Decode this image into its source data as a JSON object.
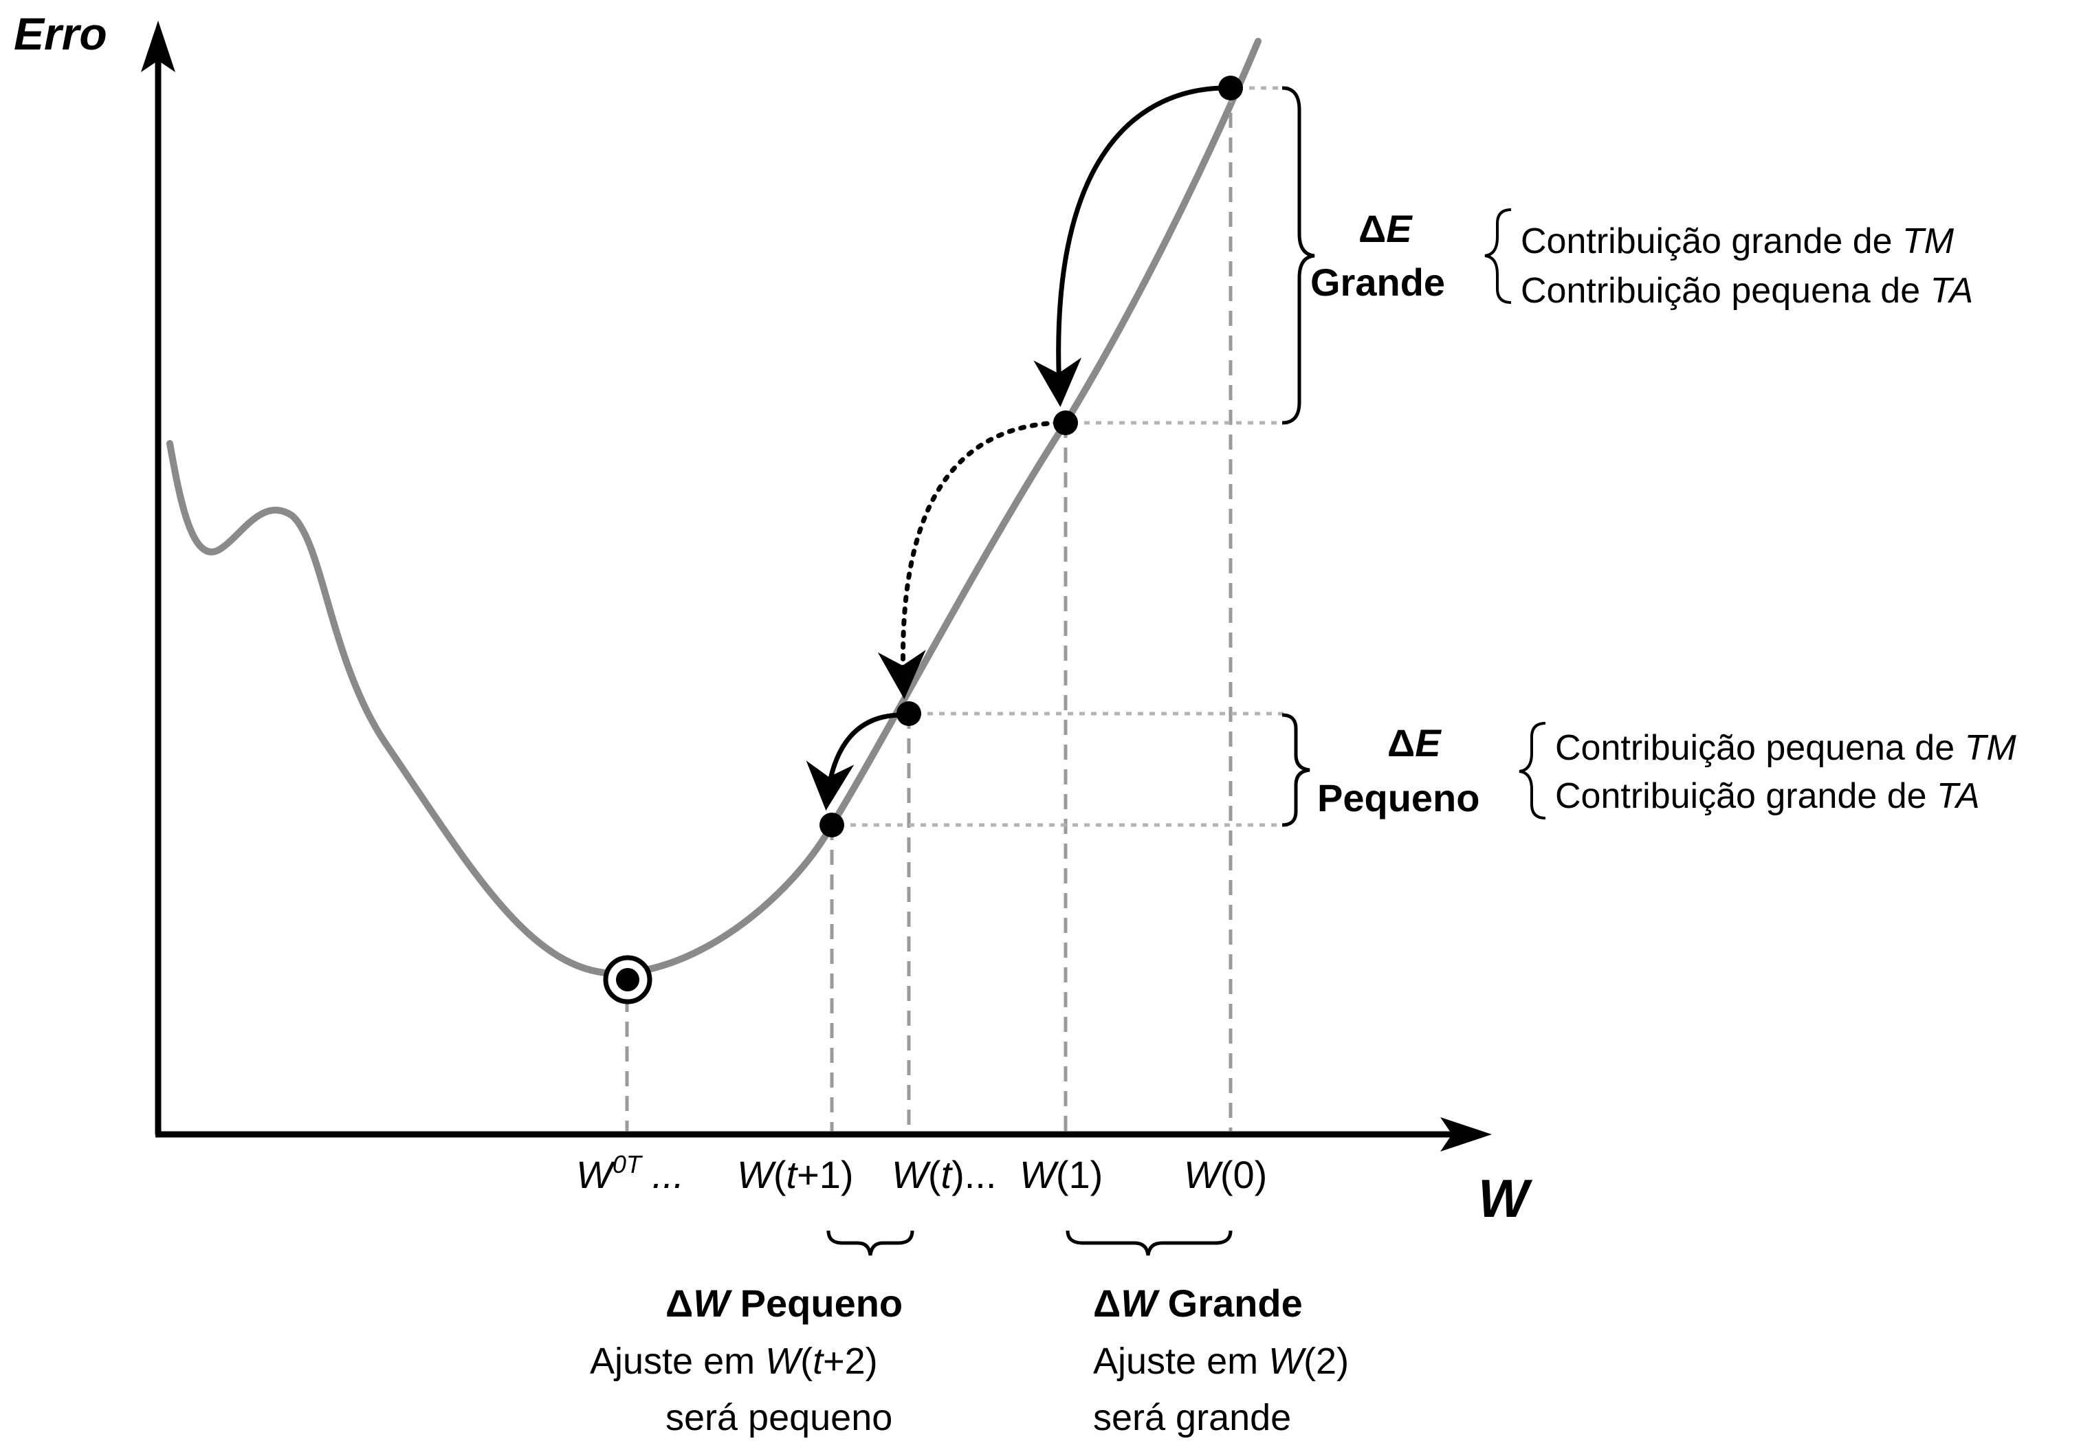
{
  "axes": {
    "y_title": "Erro",
    "x_title": "W"
  },
  "x_ticks": {
    "w_opt": {
      "base": "W",
      "sup": "0T",
      "dots": " ..."
    },
    "w_t1": {
      "parts": [
        "W",
        "(",
        "t",
        "+1)"
      ]
    },
    "w_t": {
      "parts": [
        "W",
        "(",
        "t",
        ")..."
      ]
    },
    "w_1": {
      "parts": [
        "W",
        "(1)"
      ]
    },
    "w_0": {
      "parts": [
        "W",
        "(0)"
      ]
    }
  },
  "delta_e_large": {
    "symbol": "Δ",
    "var": "E",
    "label": "Grande",
    "lines": [
      {
        "text": "Contribuição grande de ",
        "term": "TM"
      },
      {
        "text": "Contribuição pequena de ",
        "term": "TA"
      }
    ]
  },
  "delta_e_small": {
    "symbol": "Δ",
    "var": "E",
    "label": "Pequeno",
    "lines": [
      {
        "text": "Contribuição pequena de ",
        "term": "TM"
      },
      {
        "text": "Contribuição grande de ",
        "term": "TA"
      }
    ]
  },
  "delta_w_small": {
    "symbol": "Δ",
    "var": "W",
    "label": " Pequeno",
    "line2": {
      "pre": "Ajuste em ",
      "w": "W",
      "open": "(",
      "t": "t",
      "close": "+2)"
    },
    "line3": "será pequeno"
  },
  "delta_w_large": {
    "symbol": "Δ",
    "var": "W",
    "label": " Grande",
    "line2": {
      "pre": "Ajuste em ",
      "w": "W",
      "rest": "(2)"
    },
    "line3": "será grande"
  },
  "colors": {
    "curve": "#8a8a8a",
    "axis": "#000000",
    "guide_dashed": "#9a9a9a",
    "guide_dotted": "#b4b4b4",
    "point": "#000000"
  }
}
